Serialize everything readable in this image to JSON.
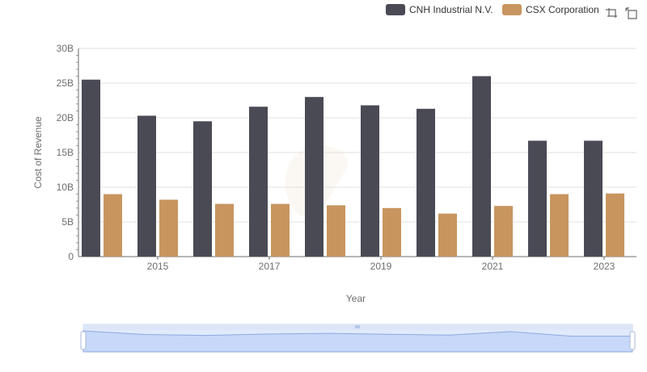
{
  "chart_data": {
    "type": "bar",
    "title": "",
    "xlabel": "Year",
    "ylabel": "Cost of Revenue",
    "categories": [
      "2014",
      "2015",
      "2016",
      "2017",
      "2018",
      "2019",
      "2020",
      "2021",
      "2022",
      "2023"
    ],
    "x_tick_labels": [
      "2015",
      "2017",
      "2019",
      "2021",
      "2023"
    ],
    "y_tick_labels": [
      "0",
      "5B",
      "10B",
      "15B",
      "20B",
      "25B",
      "30B"
    ],
    "ylim": [
      0,
      30000000000
    ],
    "grid": true,
    "legend_position": "top-right",
    "series": [
      {
        "name": "CNH Industrial N.V.",
        "color": "#4a4a55",
        "values": [
          25500000000,
          20300000000,
          19500000000,
          21600000000,
          23000000000,
          21800000000,
          21300000000,
          26000000000,
          16700000000,
          16700000000
        ]
      },
      {
        "name": "CSX Corporation",
        "color": "#c8955f",
        "values": [
          9000000000,
          8200000000,
          7600000000,
          7600000000,
          7400000000,
          7000000000,
          6200000000,
          7300000000,
          9000000000,
          9100000000
        ]
      }
    ]
  },
  "toolbar": {
    "zoom_icon": "zoom-select-icon",
    "reset_icon": "zoom-reset-icon"
  },
  "data_zoom": {
    "range": [
      0,
      1
    ]
  }
}
